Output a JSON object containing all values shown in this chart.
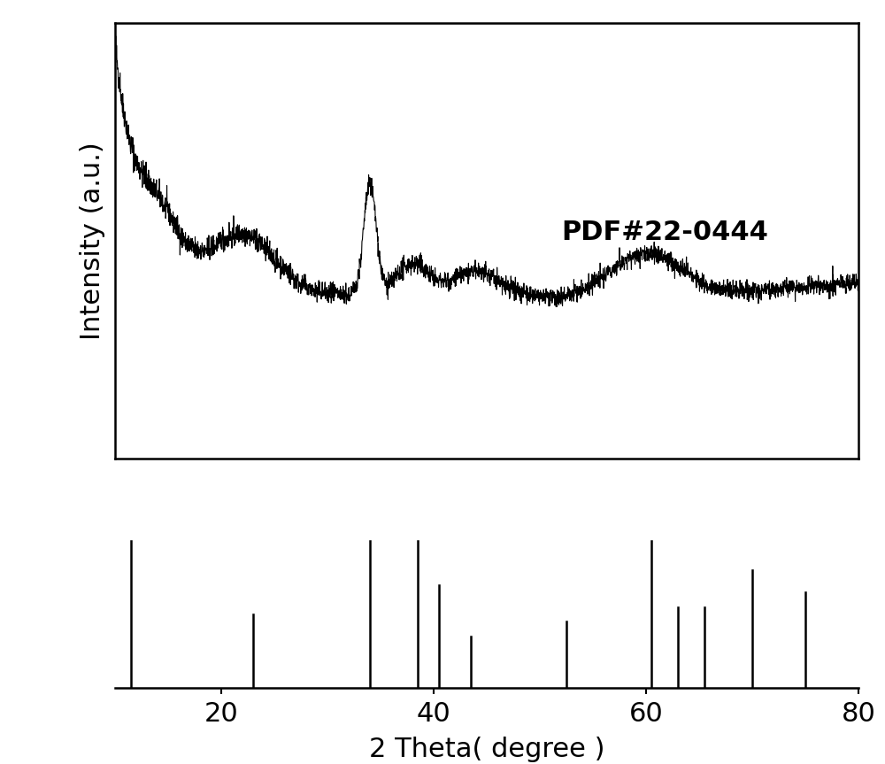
{
  "xrd_xlim": [
    10,
    80
  ],
  "xticks": [
    20,
    40,
    60,
    80
  ],
  "xlabel": "2 Theta( degree )",
  "ylabel": "Intensity (a.u.)",
  "annotation": "PDF#22-0444",
  "annotation_fontsize": 22,
  "ylabel_fontsize": 22,
  "xlabel_fontsize": 22,
  "tick_fontsize": 22,
  "line_color": "#000000",
  "background_color": "#ffffff",
  "ref_peaks": [
    11.5,
    23.0,
    34.0,
    38.5,
    40.5,
    43.5,
    52.5,
    60.5,
    63.0,
    65.5,
    70.0,
    75.0
  ],
  "ref_heights": [
    1.0,
    0.5,
    1.0,
    1.0,
    0.7,
    0.35,
    0.45,
    1.0,
    0.55,
    0.55,
    0.8,
    0.65
  ],
  "noise_seed": 42,
  "xrd_data_resolution": 3000
}
